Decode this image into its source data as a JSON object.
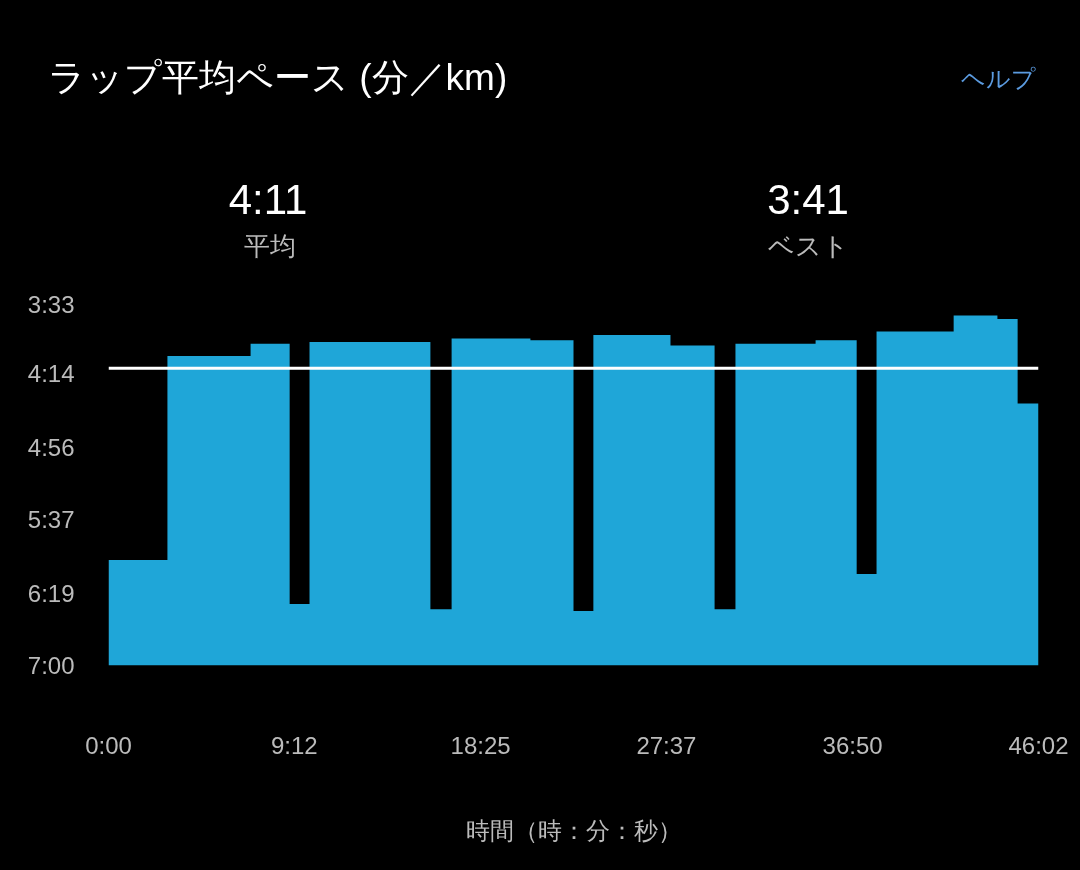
{
  "chart_data": {
    "type": "area",
    "title": "ラップ平均ペース (分／km)",
    "xlabel": "時間（時：分：秒）",
    "annotations": [
      "4:11",
      "平均",
      "3:41",
      "ベスト",
      "ヘルプ"
    ],
    "x": [
      0,
      0,
      175,
      175,
      422,
      422,
      538,
      538,
      597,
      597,
      956,
      956,
      1019,
      1019,
      1253,
      1253,
      1381,
      1381,
      1440,
      1440,
      1669,
      1669,
      1800,
      1800,
      1862,
      1862,
      2100,
      2100,
      2222,
      2222,
      2281,
      2281,
      2510,
      2510,
      2640,
      2640,
      2700,
      2700,
      2762,
      2762
    ],
    "series": [
      {
        "color": "#1fa6d8",
        "values": [
          420,
          360,
          360,
          244,
          244,
          237,
          237,
          385,
          385,
          236,
          236,
          388,
          388,
          234,
          234,
          235,
          235,
          389,
          389,
          232,
          232,
          238,
          238,
          388,
          388,
          237,
          237,
          235,
          235,
          368,
          368,
          230,
          230,
          221,
          221,
          223,
          223,
          271,
          271,
          420
        ]
      }
    ],
    "xlim": [
      0,
      2762
    ],
    "xticks": [
      {
        "value": 0,
        "label": "0:00"
      },
      {
        "value": 552,
        "label": "9:12"
      },
      {
        "value": 1105,
        "label": "18:25"
      },
      {
        "value": 1657,
        "label": "27:37"
      },
      {
        "value": 2210,
        "label": "36:50"
      },
      {
        "value": 2762,
        "label": "46:02"
      }
    ],
    "ylim": [
      420,
      213
    ],
    "yticks": [
      {
        "value": 213,
        "label": "3:33"
      },
      {
        "value": 254,
        "label": "4:14"
      },
      {
        "value": 296,
        "label": "4:56"
      },
      {
        "value": 337,
        "label": "5:37"
      },
      {
        "value": 379,
        "label": "6:19"
      },
      {
        "value": 420,
        "label": "7:00"
      }
    ],
    "ref_lines": [
      {
        "axis": "y",
        "value": 251,
        "color": "#ffffff"
      }
    ],
    "grid": false
  }
}
